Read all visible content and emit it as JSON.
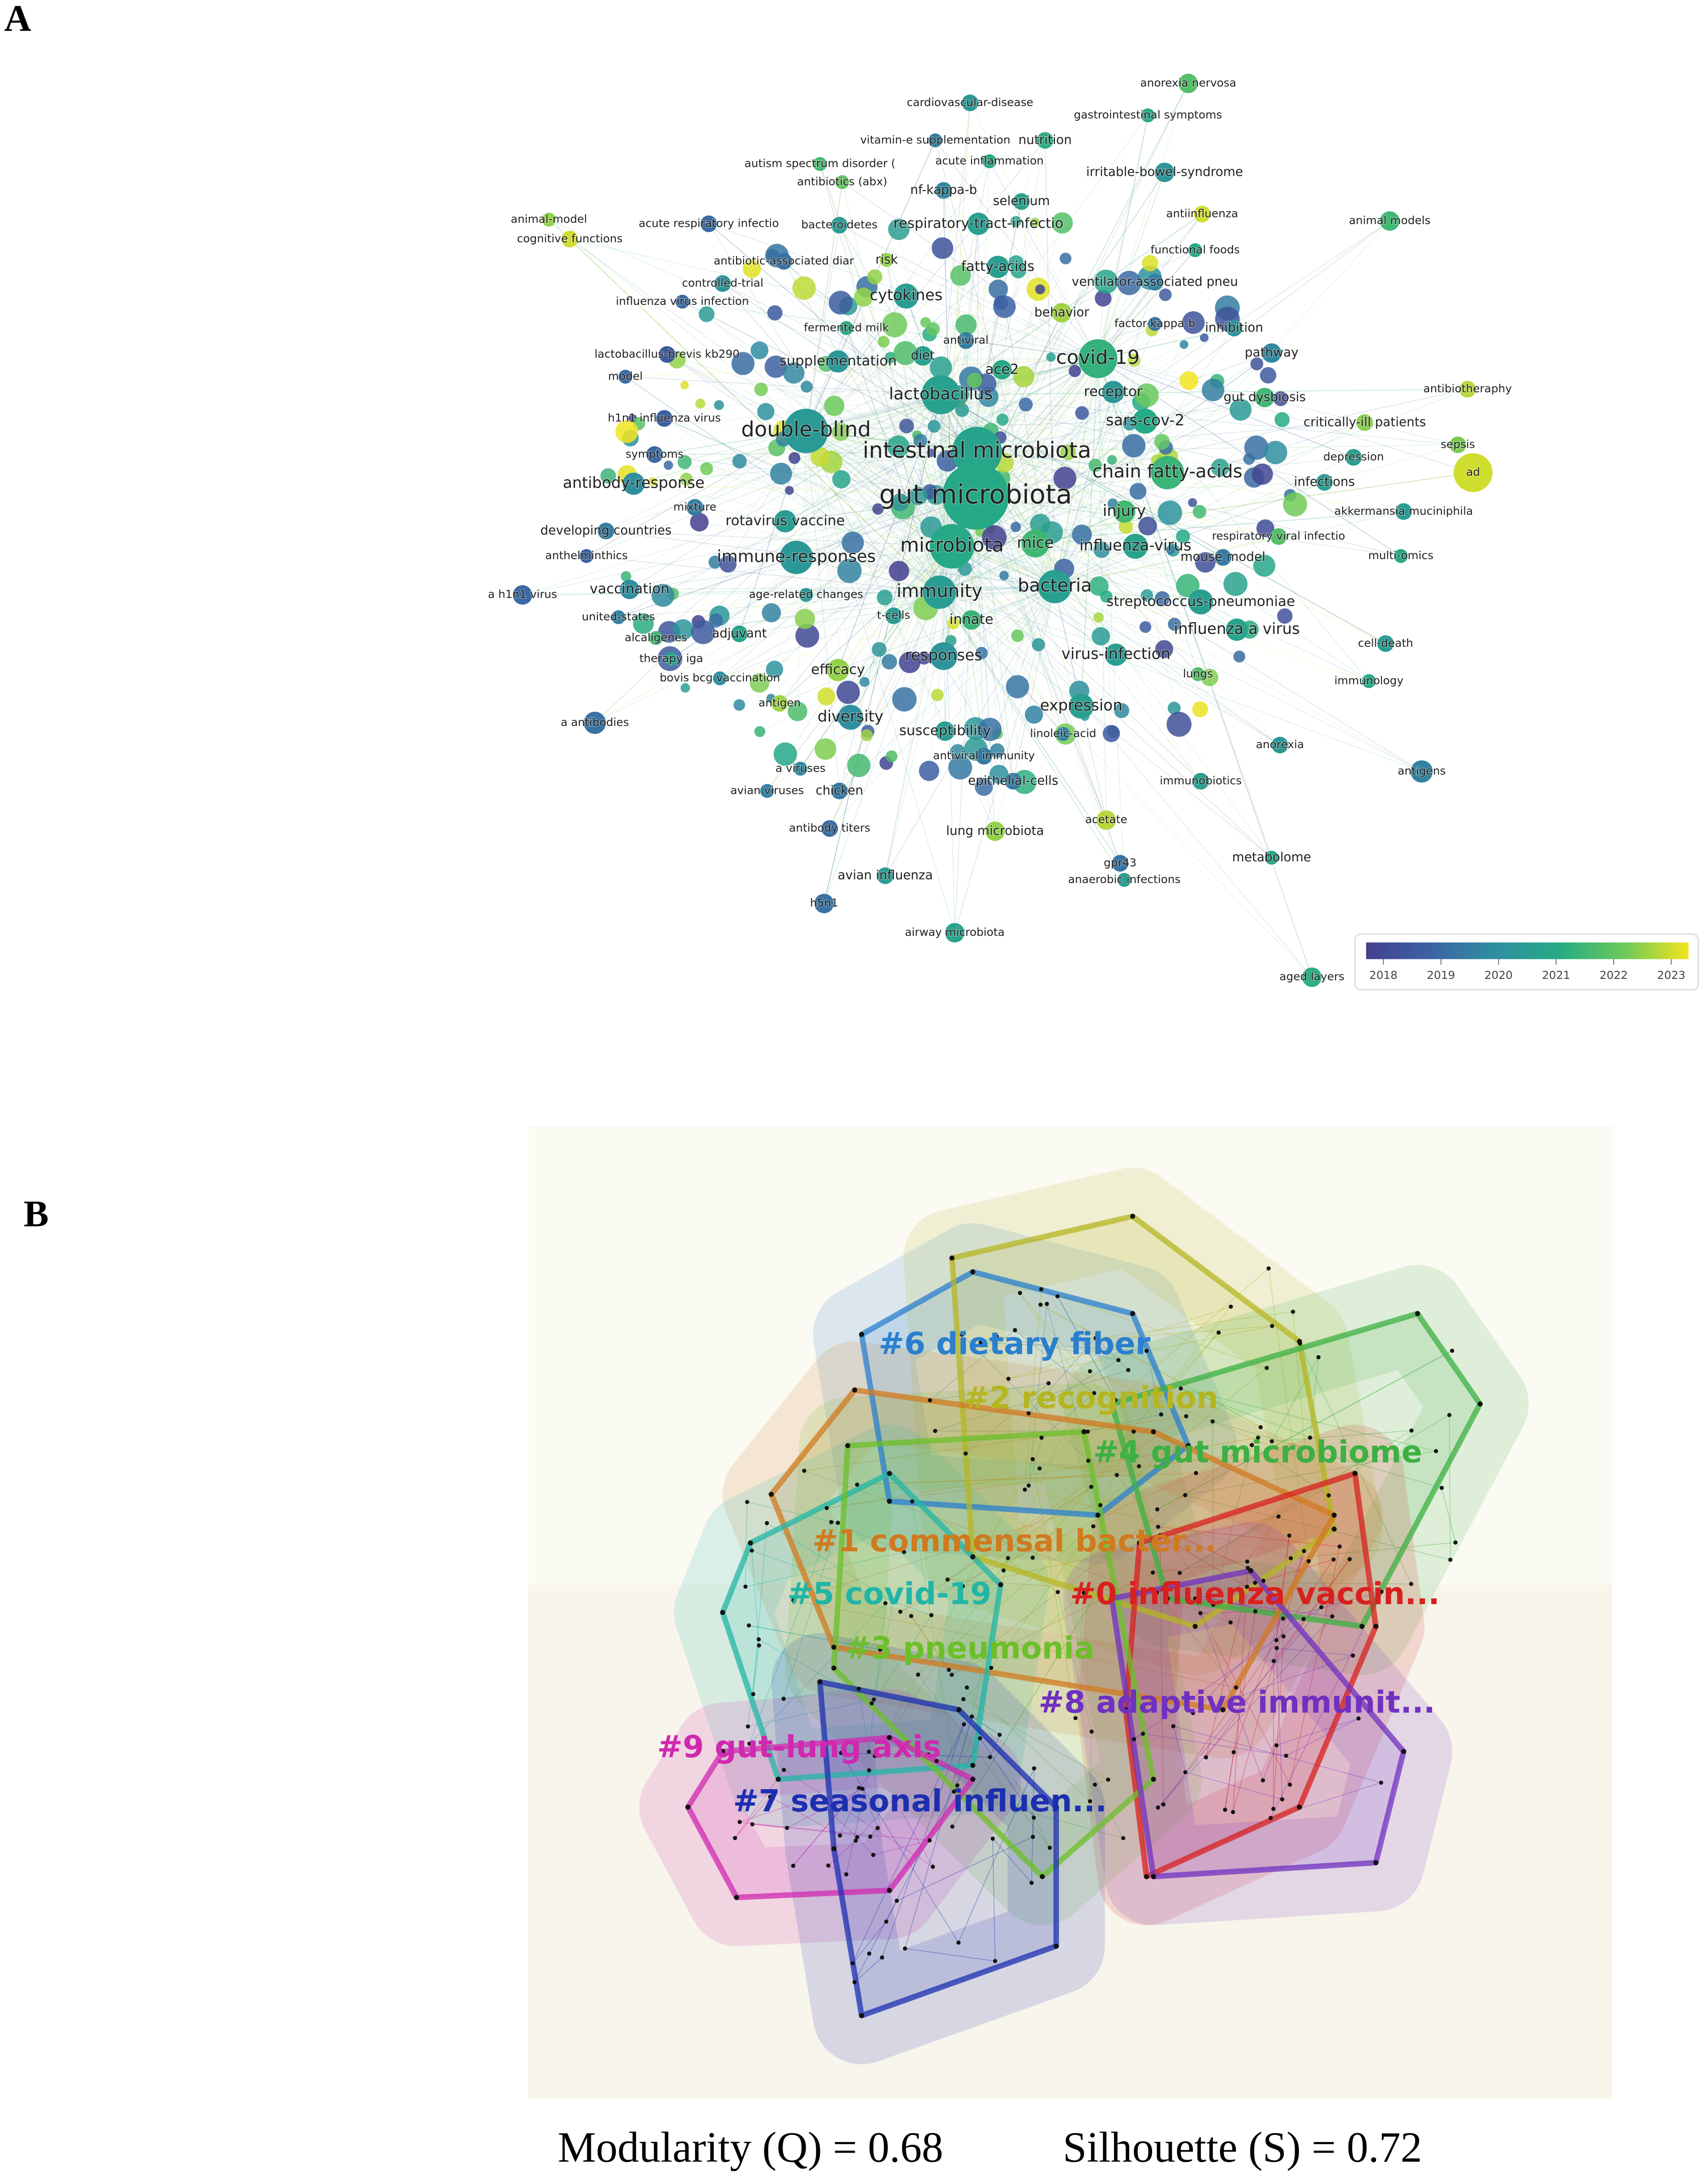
{
  "panel_a": {
    "label": "A",
    "colorbar": {
      "lim": [
        2017.7,
        2023.3
      ],
      "ticks": [
        2018,
        2019,
        2020,
        2021,
        2022,
        2023
      ],
      "colors": [
        "#433f8f",
        "#3b63a3",
        "#2f8ea0",
        "#25ab85",
        "#6cc95a",
        "#f3e51e"
      ]
    },
    "nodes": [
      {
        "label": "anorexia nervosa",
        "year": 2021.8
      },
      {
        "label": "cardiovascular-disease",
        "year": 2020.3
      },
      {
        "label": "gastrointestinal symptoms",
        "year": 2021
      },
      {
        "label": "vitamin-e supplementation",
        "year": 2019.5
      },
      {
        "label": "nutrition",
        "year": 2021.2
      },
      {
        "label": "autism spectrum disorder (",
        "year": 2021.6
      },
      {
        "label": "acute inflammation",
        "year": 2021
      },
      {
        "label": "irritable-bowel-syndrome",
        "year": 2020.2
      },
      {
        "label": "antibiotics (abx)",
        "year": 2022
      },
      {
        "label": "nf-kappa-b",
        "year": 2019.8
      },
      {
        "label": "selenium",
        "year": 2020.8
      },
      {
        "label": "animal-model",
        "year": 2022.5
      },
      {
        "label": "acute respiratory infectio",
        "year": 2019
      },
      {
        "label": "bacteroidetes",
        "year": 2020.5
      },
      {
        "label": "respiratory-tract-infectio",
        "year": 2020.6
      },
      {
        "label": "antiinfluenza",
        "year": 2023
      },
      {
        "label": "animal models",
        "year": 2021.5
      },
      {
        "label": "cognitive functions",
        "year": 2023
      },
      {
        "label": "functional foods",
        "year": 2021
      },
      {
        "label": "antibiotic-associated diar",
        "year": 2019.2
      },
      {
        "label": "risk",
        "year": 2022.5
      },
      {
        "label": "fatty-acids",
        "year": 2020.6
      },
      {
        "label": "controlled-trial",
        "year": 2020.2
      },
      {
        "label": "ventilator-associated pneu",
        "year": 2019.6
      },
      {
        "label": "influenza virus infection",
        "year": 2019
      },
      {
        "label": "cytokines",
        "year": 2020.5
      },
      {
        "label": "behavior",
        "year": 2022.6
      },
      {
        "label": "fermented milk",
        "year": 2021
      },
      {
        "label": "antiviral",
        "year": 2019.5
      },
      {
        "label": "factor-kappa-b",
        "year": 2019.3
      },
      {
        "label": "inhibition",
        "year": 2020.2
      },
      {
        "label": "lactobacillus-brevis kb290",
        "year": 2018.5
      },
      {
        "label": "diet",
        "year": 2020.6
      },
      {
        "label": "supplementation",
        "year": 2020.3
      },
      {
        "label": "covid-19",
        "year": 2021.3
      },
      {
        "label": "pathway",
        "year": 2019.8
      },
      {
        "label": "model",
        "year": 2019
      },
      {
        "label": "ace2",
        "year": 2021
      },
      {
        "label": "antibiotheraphy",
        "year": 2022.8
      },
      {
        "label": "receptor",
        "year": 2020.3
      },
      {
        "label": "lactobacillus",
        "year": 2020.7
      },
      {
        "label": "gut dysbiosis",
        "year": 2021.5
      },
      {
        "label": "h1n1 influenza virus",
        "year": 2018.7
      },
      {
        "label": "sars-cov-2",
        "year": 2021
      },
      {
        "label": "critically-ill patients",
        "year": 2022.4
      },
      {
        "label": "double-blind",
        "year": 2020.4
      },
      {
        "label": "symptoms",
        "year": 2019
      },
      {
        "label": "intestinal microbiota",
        "year": 2020.8
      },
      {
        "label": "depression",
        "year": 2020.6
      },
      {
        "label": "sepsis",
        "year": 2022.3
      },
      {
        "label": "chain fatty-acids",
        "year": 2021.4
      },
      {
        "label": "infections",
        "year": 2020.5
      },
      {
        "label": "antibody-response",
        "year": 2020
      },
      {
        "label": "ad",
        "year": 2023
      },
      {
        "label": "gut microbiota",
        "year": 2021
      },
      {
        "label": "akkermansia muciniphila",
        "year": 2020.5
      },
      {
        "label": "mixture",
        "year": 2019.5
      },
      {
        "label": "injury",
        "year": 2021.5
      },
      {
        "label": "rotavirus vaccine",
        "year": 2020.5
      },
      {
        "label": "developing countries",
        "year": 2019.5
      },
      {
        "label": "respiratory viral infectio",
        "year": 2021.8
      },
      {
        "label": "microbiota",
        "year": 2021
      },
      {
        "label": "mice",
        "year": 2021.5
      },
      {
        "label": "influenza-virus",
        "year": 2020.8
      },
      {
        "label": "anthelminthics",
        "year": 2018.8
      },
      {
        "label": "multi-omics",
        "year": 2021
      },
      {
        "label": "immune-responses",
        "year": 2020.3
      },
      {
        "label": "mouse model",
        "year": 2019.5
      },
      {
        "label": "bacteria",
        "year": 2020.6
      },
      {
        "label": "vaccination",
        "year": 2020
      },
      {
        "label": "a h1n1 virus",
        "year": 2019
      },
      {
        "label": "age-related changes",
        "year": 2020.4
      },
      {
        "label": "immunity",
        "year": 2020.5
      },
      {
        "label": "streptococcus-pneumoniae",
        "year": 2020.6
      },
      {
        "label": "united-states",
        "year": 2019.6
      },
      {
        "label": "t-cells",
        "year": 2020.5
      },
      {
        "label": "innate",
        "year": 2021.4
      },
      {
        "label": "adjuvant",
        "year": 2020.8
      },
      {
        "label": "alcaligenes",
        "year": 2021.5
      },
      {
        "label": "influenza a virus",
        "year": 2020.8
      },
      {
        "label": "cell-death",
        "year": 2020.5
      },
      {
        "label": "responses",
        "year": 2020.2
      },
      {
        "label": "virus-infection",
        "year": 2020.5
      },
      {
        "label": "therapy iga",
        "year": 2020.8
      },
      {
        "label": "lungs",
        "year": 2021.8
      },
      {
        "label": "efficacy",
        "year": 2022.5
      },
      {
        "label": "bovis bcg vaccination",
        "year": 2020
      },
      {
        "label": "immunology",
        "year": 2021
      },
      {
        "label": "antigen",
        "year": 2022.6
      },
      {
        "label": "expression",
        "year": 2020.6
      },
      {
        "label": "diversity",
        "year": 2020
      },
      {
        "label": "a antibodies",
        "year": 2019.2
      },
      {
        "label": "susceptibility",
        "year": 2020.5
      },
      {
        "label": "linoleic-acid",
        "year": 2019.6
      },
      {
        "label": "anorexia",
        "year": 2020.3
      },
      {
        "label": "antiviral immunity",
        "year": 2019.4
      },
      {
        "label": "a viruses",
        "year": 2019.8
      },
      {
        "label": "antigens",
        "year": 2019.6
      },
      {
        "label": "epithelial-cells",
        "year": 2019.4
      },
      {
        "label": "immunobiotics",
        "year": 2020.6
      },
      {
        "label": "avian viruses",
        "year": 2019.6
      },
      {
        "label": "chicken",
        "year": 2019.4
      },
      {
        "label": "acetate",
        "year": 2022.8
      },
      {
        "label": "antibody titers",
        "year": 2019
      },
      {
        "label": "lung microbiota",
        "year": 2022.5
      },
      {
        "label": "metabolome",
        "year": 2021
      },
      {
        "label": "gpr43",
        "year": 2019.2
      },
      {
        "label": "anaerobic infections",
        "year": 2020.5
      },
      {
        "label": "avian influenza",
        "year": 2020.5
      },
      {
        "label": "h5n1",
        "year": 2019.2
      },
      {
        "label": "airway microbiota",
        "year": 2020.8
      },
      {
        "label": "aged layers",
        "year": 2021.2
      }
    ]
  },
  "panel_b": {
    "label": "B",
    "clusters": [
      {
        "label": "#6 dietary fiber",
        "color": "#2a7fcf"
      },
      {
        "label": "#2 recognition",
        "color": "#b5b522"
      },
      {
        "label": "#4 gut microbiome",
        "color": "#3cb043"
      },
      {
        "label": "#1 commensal bacter...",
        "color": "#d07a1f"
      },
      {
        "label": "#5 covid-19",
        "color": "#22b5a5"
      },
      {
        "label": "#0 influenza vaccin...",
        "color": "#d8201f"
      },
      {
        "label": "#3 pneumonia",
        "color": "#6cbf2a"
      },
      {
        "label": "#8 adaptive immunit...",
        "color": "#7030c0"
      },
      {
        "label": "#9 gut-lung axis",
        "color": "#d028b0"
      },
      {
        "label": "#7 seasonal influen...",
        "color": "#1c2fb0"
      }
    ],
    "modularity": "Modularity (Q) = 0.68",
    "silhouette": "Silhouette (S) = 0.72"
  }
}
